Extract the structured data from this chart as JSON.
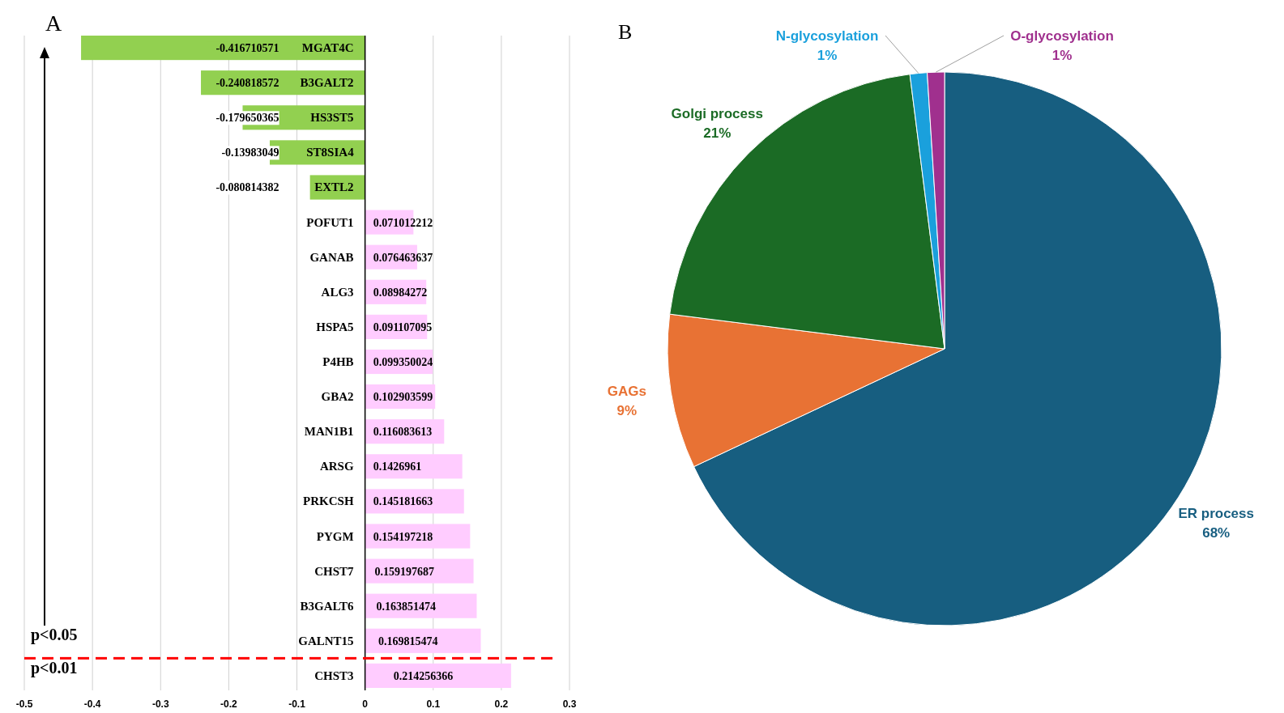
{
  "chart_data": [
    {
      "type": "bar",
      "title": "A",
      "orientation": "horizontal",
      "categories": [
        "MGAT4C",
        "B3GALT2",
        "HS3ST5",
        "ST8SIA4",
        "EXTL2",
        "POFUT1",
        "GANAB",
        "ALG3",
        "HSPA5",
        "P4HB",
        "GBA2",
        "MAN1B1",
        "ARSG",
        "PRKCSH",
        "PYGM",
        "CHST7",
        "B3GALT6",
        "GALNT15",
        "CHST3"
      ],
      "values": [
        -0.416710571,
        -0.240818572,
        -0.179650365,
        -0.13983049,
        -0.080814382,
        0.071012212,
        0.076463637,
        0.08984272,
        0.091107095,
        0.099350024,
        0.102903599,
        0.116083613,
        0.1426961,
        0.145181663,
        0.154197218,
        0.159197687,
        0.163851474,
        0.169815474,
        0.214256366
      ],
      "colors": [
        "#92d050",
        "#92d050",
        "#92d050",
        "#92d050",
        "#92d050",
        "#ffccff",
        "#ffccff",
        "#ffccff",
        "#ffccff",
        "#ffccff",
        "#ffccff",
        "#ffccff",
        "#ffccff",
        "#ffccff",
        "#ffccff",
        "#ffccff",
        "#ffccff",
        "#ffccff",
        "#ffccff"
      ],
      "data_labels": true,
      "xlim": [
        -0.5,
        0.3
      ],
      "xticks": [
        -0.5,
        -0.4,
        -0.3,
        -0.2,
        -0.1,
        0,
        0.1,
        0.2,
        0.3
      ],
      "grid": "x",
      "annotations": [
        "p<0.05",
        "p<0.01"
      ]
    },
    {
      "type": "pie",
      "title": "B",
      "categories": [
        "ER process",
        "GAGs",
        "Golgi process",
        "N-glycosylation",
        "O-glycosylation"
      ],
      "values": [
        68,
        9,
        21,
        1,
        1
      ],
      "colors": [
        "#175e80",
        "#e87234",
        "#1b6b25",
        "#1aa0dc",
        "#a0308e"
      ],
      "value_labels": [
        "68%",
        "9%",
        "21%",
        "1%",
        "1%"
      ]
    }
  ]
}
